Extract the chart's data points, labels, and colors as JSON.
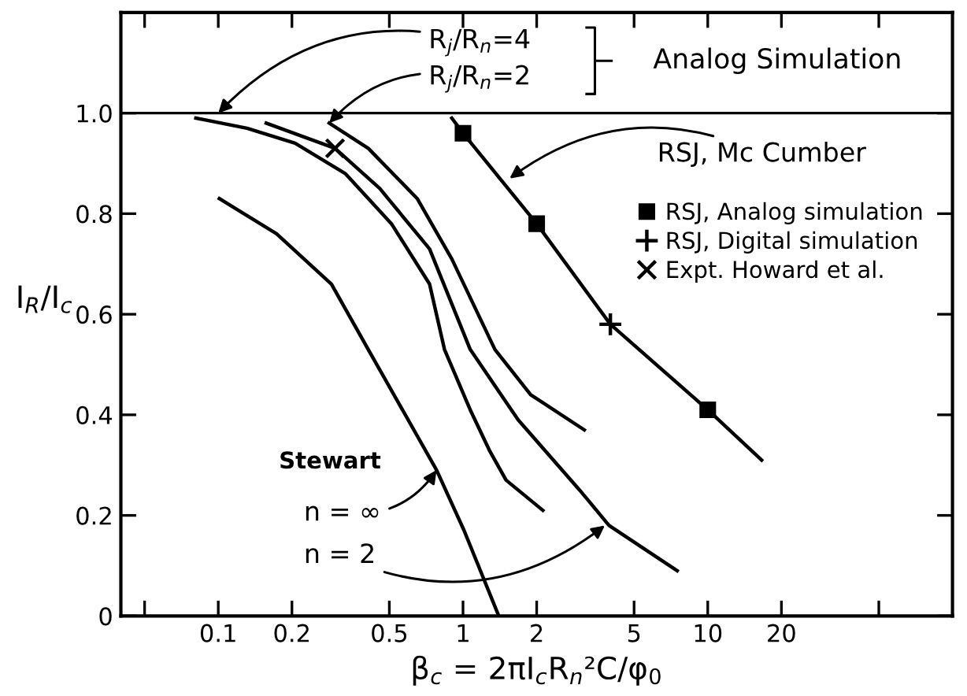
{
  "chart_data": {
    "type": "line",
    "xlabel": "β$_{c}$ = 2πI$_{c}$R$_{n}$²C/φ$_{0}$",
    "ylabel": "I$_{R}$/I$_{c}$",
    "log": "x",
    "xlim": [
      0.04,
      100
    ],
    "ylim": [
      0,
      1.2
    ],
    "xticks": [
      {
        "value": 0.05,
        "label": null
      },
      0.1,
      0.2,
      0.5,
      1,
      2,
      5,
      10,
      20,
      {
        "value": 50,
        "label": null
      }
    ],
    "yticks": [
      0,
      0.2,
      0.4,
      0.6,
      0.8,
      {
        "value": 1.0,
        "label": "1.0"
      }
    ],
    "grid": false,
    "legend": "top right",
    "ref_lines": [
      {
        "axis": "y",
        "value": 1.0,
        "color": "#000000"
      }
    ],
    "series": [
      {
        "color": "#000000",
        "x": [
          0.081,
          0.131,
          0.206,
          0.33,
          0.51,
          0.73,
          0.84,
          1.07,
          1.28,
          1.5,
          2.12
        ],
        "values": [
          0.99,
          0.97,
          0.94,
          0.88,
          0.78,
          0.66,
          0.53,
          0.41,
          0.33,
          0.27,
          0.21
        ]
      },
      {
        "color": "#000000",
        "x": [
          0.157,
          0.3,
          0.457,
          0.73,
          1.07,
          1.68,
          3.0,
          3.95,
          7.5
        ],
        "values": [
          0.98,
          0.93,
          0.85,
          0.73,
          0.53,
          0.39,
          0.25,
          0.18,
          0.09
        ]
      },
      {
        "color": "#000000",
        "x": [
          0.284,
          0.41,
          0.65,
          0.9,
          1.35,
          1.89,
          3.13
        ],
        "values": [
          0.98,
          0.93,
          0.83,
          0.71,
          0.53,
          0.44,
          0.37
        ]
      },
      {
        "color": "#000000",
        "x": [
          0.101,
          0.173,
          0.29,
          0.41,
          0.78,
          1.01,
          1.4
        ],
        "values": [
          0.83,
          0.76,
          0.66,
          0.53,
          0.29,
          0.17,
          0
        ]
      },
      {
        "color": "#000000",
        "x": [
          0.9,
          1.0,
          2.0,
          4.0,
          10,
          16.6
        ],
        "values": [
          0.99,
          0.96,
          0.78,
          0.58,
          0.41,
          0.31
        ]
      },
      {
        "type": "scatter",
        "marker": "square",
        "name": "RSJ, Analog simulation",
        "color": "#000000",
        "x": [
          1.0,
          2.0,
          10
        ],
        "values": [
          0.96,
          0.78,
          0.41
        ]
      },
      {
        "type": "scatter",
        "marker": "plus",
        "name": "RSJ, Digital simulation",
        "color": "#000000",
        "x": [
          4.0
        ],
        "values": [
          0.58
        ]
      },
      {
        "type": "scatter",
        "marker": "cross",
        "name": "Expt. Howard et al.",
        "color": "#000000",
        "x": [
          0.3
        ],
        "values": [
          0.93
        ]
      }
    ],
    "annotations": [
      {
        "text": "R$_{j}$/R$_{n}$=4",
        "x": 0.1,
        "y": 1.0
      },
      {
        "text": "R$_{j}$/R$_{n}$=2",
        "x": 0.284,
        "y": 0.98
      },
      "Analog Simulation",
      {
        "text": "RSJ, Mc Cumber",
        "x": 1.55,
        "y": 0.87
      },
      "Stewart",
      {
        "text": "n = ∞",
        "x": 0.78,
        "y": 0.29
      },
      {
        "text": "n = 2",
        "x": 3.8,
        "y": 0.18
      }
    ]
  }
}
